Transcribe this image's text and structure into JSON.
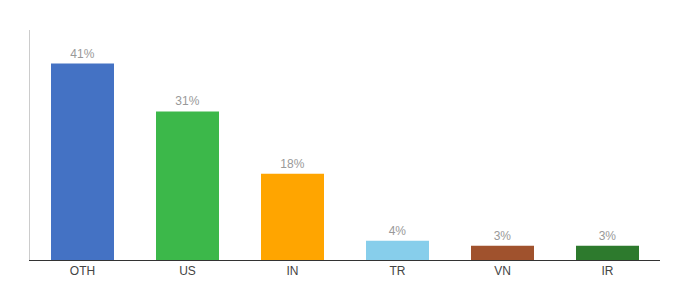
{
  "chart_data": {
    "type": "bar",
    "categories": [
      "OTH",
      "US",
      "IN",
      "TR",
      "VN",
      "IR"
    ],
    "values": [
      41,
      31,
      18,
      4,
      3,
      3
    ],
    "value_labels": [
      "41%",
      "31%",
      "18%",
      "4%",
      "3%",
      "3%"
    ],
    "colors": [
      "#4472C4",
      "#3CB84A",
      "#FFA500",
      "#87CEEB",
      "#A0522D",
      "#2D7A2D"
    ],
    "ylim": [
      0,
      48
    ],
    "grid": false,
    "data_labels": true,
    "tick_labels": "x"
  }
}
